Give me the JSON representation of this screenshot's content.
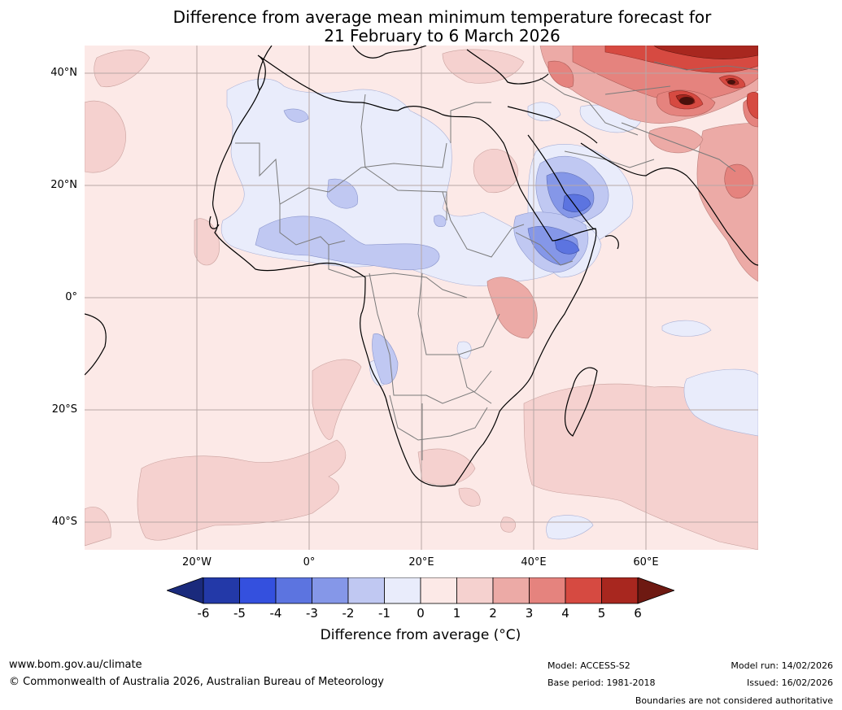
{
  "title": {
    "line1": "Difference from average mean minimum temperature forecast for",
    "line2": "21 February to 6 March 2026"
  },
  "axes": {
    "lat_labels": [
      "40°N",
      "20°N",
      "0°",
      "20°S",
      "40°S"
    ],
    "lon_labels": [
      "20°W",
      "0°",
      "20°E",
      "40°E",
      "60°E"
    ]
  },
  "colorbar": {
    "ticks": [
      "-6",
      "-5",
      "-4",
      "-3",
      "-2",
      "-1",
      "0",
      "1",
      "2",
      "3",
      "4",
      "5",
      "6"
    ],
    "colors": [
      "#2339a8",
      "#3450de",
      "#5c74e0",
      "#8597e8",
      "#c0c8f2",
      "#e9ecfb",
      "#fce9e7",
      "#f5d1cf",
      "#ecaaa6",
      "#e5837e",
      "#d64a41",
      "#a8271f"
    ],
    "under_color": "#1a2a7c",
    "over_color": "#6e1912",
    "label": "Difference from average (°C)"
  },
  "footer": {
    "website": "www.bom.gov.au/climate",
    "copyright": "© Commonwealth of Australia 2026, Australian Bureau of Meteorology",
    "model": "Model: ACCESS-S2",
    "base_period": "Base period: 1981-2018",
    "model_run": "Model run: 14/02/2026",
    "issued": "Issued: 16/02/2026",
    "disclaimer": "Boundaries are not considered authoritative"
  }
}
